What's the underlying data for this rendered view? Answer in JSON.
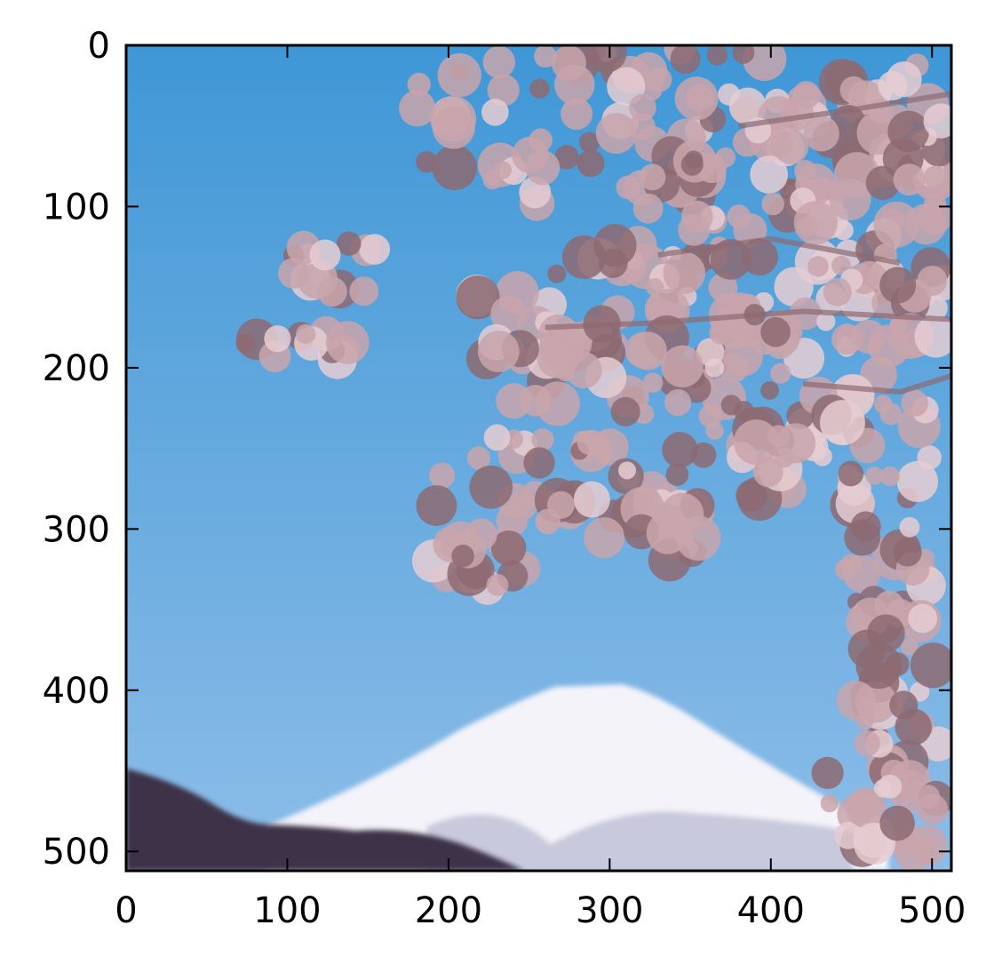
{
  "chart_data": {
    "type": "image",
    "title": "",
    "xlabel": "",
    "ylabel": "",
    "xlim": [
      0,
      512
    ],
    "ylim": [
      512,
      0
    ],
    "x_ticks": [
      0,
      100,
      200,
      300,
      400,
      500
    ],
    "y_ticks": [
      0,
      100,
      200,
      300,
      400,
      500
    ],
    "x_tick_labels": [
      "0",
      "100",
      "200",
      "300",
      "400",
      "500"
    ],
    "y_tick_labels": [
      "0",
      "100",
      "200",
      "300",
      "400",
      "500"
    ],
    "grid": false,
    "image_scene": [
      "cherry-blossom-branches",
      "snow-capped-mountain",
      "blue-sky",
      "dark-foothills"
    ],
    "colors": {
      "sky_top": "#3f97d6",
      "sky_bottom": "#8dbde8",
      "blossom": "#c9a4ab",
      "blossom_light": "#e6cdd2",
      "blossom_dark": "#8d6a72",
      "snow": "#f4f3f9",
      "snow_shadow": "#c9c9dd",
      "hills": "#3d3346",
      "axis": "#000000"
    }
  }
}
